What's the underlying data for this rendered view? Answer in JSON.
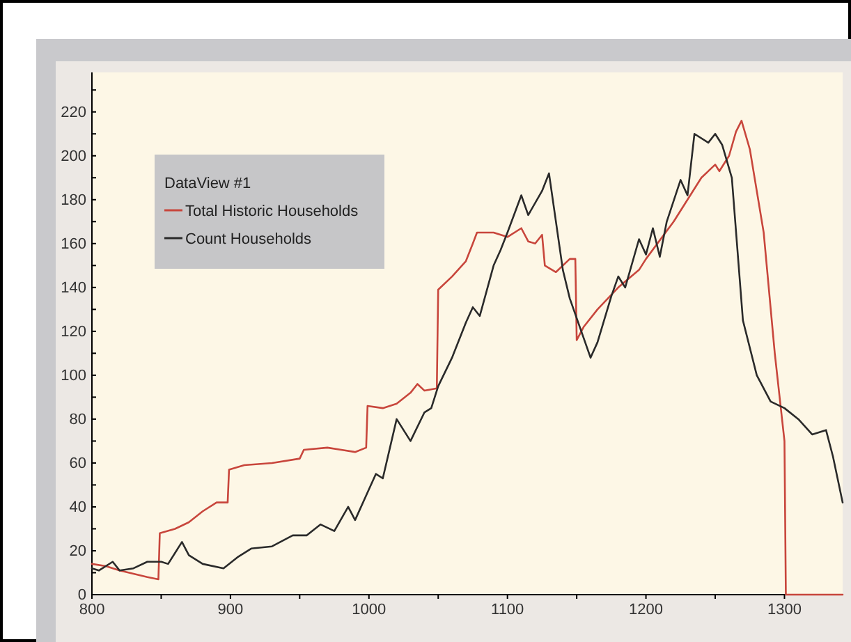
{
  "chart_data": {
    "type": "line",
    "legend_title": "DataView #1",
    "legend": "top left",
    "grid": false,
    "xlim": [
      800,
      1342
    ],
    "ylim": [
      0,
      238
    ],
    "xticks": [
      800,
      {
        "value": 850,
        "label": null
      },
      900,
      {
        "value": 950,
        "label": null
      },
      1000,
      {
        "value": 1050,
        "label": null
      },
      1100,
      {
        "value": 1150,
        "label": null
      },
      1200,
      {
        "value": 1250,
        "label": null
      },
      1300
    ],
    "yticks": [
      0,
      {
        "value": 10,
        "label": null
      },
      20,
      {
        "value": 30,
        "label": null
      },
      40,
      {
        "value": 50,
        "label": null
      },
      60,
      {
        "value": 70,
        "label": null
      },
      80,
      {
        "value": 90,
        "label": null
      },
      100,
      {
        "value": 110,
        "label": null
      },
      120,
      {
        "value": 130,
        "label": null
      },
      140,
      {
        "value": 150,
        "label": null
      },
      160,
      {
        "value": 170,
        "label": null
      },
      180,
      {
        "value": 190,
        "label": null
      },
      200,
      {
        "value": 210,
        "label": null
      },
      220,
      {
        "value": 230,
        "label": null
      }
    ],
    "series": [
      {
        "name": "Total Historic Households",
        "color": "#c8463c",
        "x": [
          800,
          810,
          820,
          840,
          848,
          849,
          860,
          870,
          880,
          890,
          898,
          899,
          910,
          930,
          950,
          953,
          970,
          980,
          990,
          998,
          999,
          1010,
          1020,
          1030,
          1035,
          1040,
          1049,
          1050,
          1060,
          1070,
          1075,
          1078,
          1090,
          1100,
          1110,
          1115,
          1120,
          1125,
          1127,
          1135,
          1145,
          1149,
          1150,
          1155,
          1165,
          1180,
          1195,
          1200,
          1220,
          1240,
          1250,
          1253,
          1260,
          1265,
          1269,
          1275,
          1285,
          1293,
          1300,
          1301,
          1342
        ],
        "values": [
          14,
          13,
          11,
          8,
          7,
          28,
          30,
          33,
          38,
          42,
          42,
          57,
          59,
          60,
          62,
          66,
          67,
          66,
          65,
          67,
          86,
          85,
          87,
          92,
          96,
          93,
          94,
          139,
          145,
          152,
          160,
          165,
          165,
          163,
          167,
          161,
          160,
          164,
          150,
          147,
          153,
          153,
          116,
          122,
          130,
          140,
          148,
          153,
          170,
          190,
          196,
          193,
          200,
          211,
          216,
          203,
          165,
          110,
          70,
          0,
          0
        ]
      },
      {
        "name": "Count Households",
        "color": "#2a2a2a",
        "x": [
          800,
          805,
          815,
          820,
          830,
          840,
          850,
          855,
          865,
          870,
          880,
          895,
          905,
          915,
          930,
          945,
          955,
          965,
          975,
          985,
          990,
          1000,
          1005,
          1010,
          1020,
          1030,
          1040,
          1045,
          1050,
          1060,
          1070,
          1075,
          1080,
          1090,
          1095,
          1100,
          1110,
          1115,
          1125,
          1130,
          1140,
          1145,
          1160,
          1165,
          1175,
          1180,
          1185,
          1195,
          1200,
          1205,
          1210,
          1215,
          1225,
          1230,
          1235,
          1245,
          1250,
          1255,
          1262,
          1270,
          1280,
          1290,
          1300,
          1310,
          1320,
          1330,
          1335,
          1342
        ],
        "values": [
          12,
          11,
          15,
          11,
          12,
          15,
          15,
          14,
          24,
          18,
          14,
          12,
          17,
          21,
          22,
          27,
          27,
          32,
          29,
          40,
          34,
          48,
          55,
          53,
          80,
          70,
          83,
          85,
          95,
          108,
          124,
          131,
          127,
          150,
          157,
          165,
          182,
          173,
          184,
          192,
          148,
          135,
          108,
          115,
          136,
          145,
          140,
          162,
          155,
          167,
          154,
          170,
          189,
          182,
          210,
          206,
          210,
          205,
          190,
          125,
          100,
          88,
          85,
          80,
          73,
          75,
          63,
          42
        ]
      }
    ]
  }
}
